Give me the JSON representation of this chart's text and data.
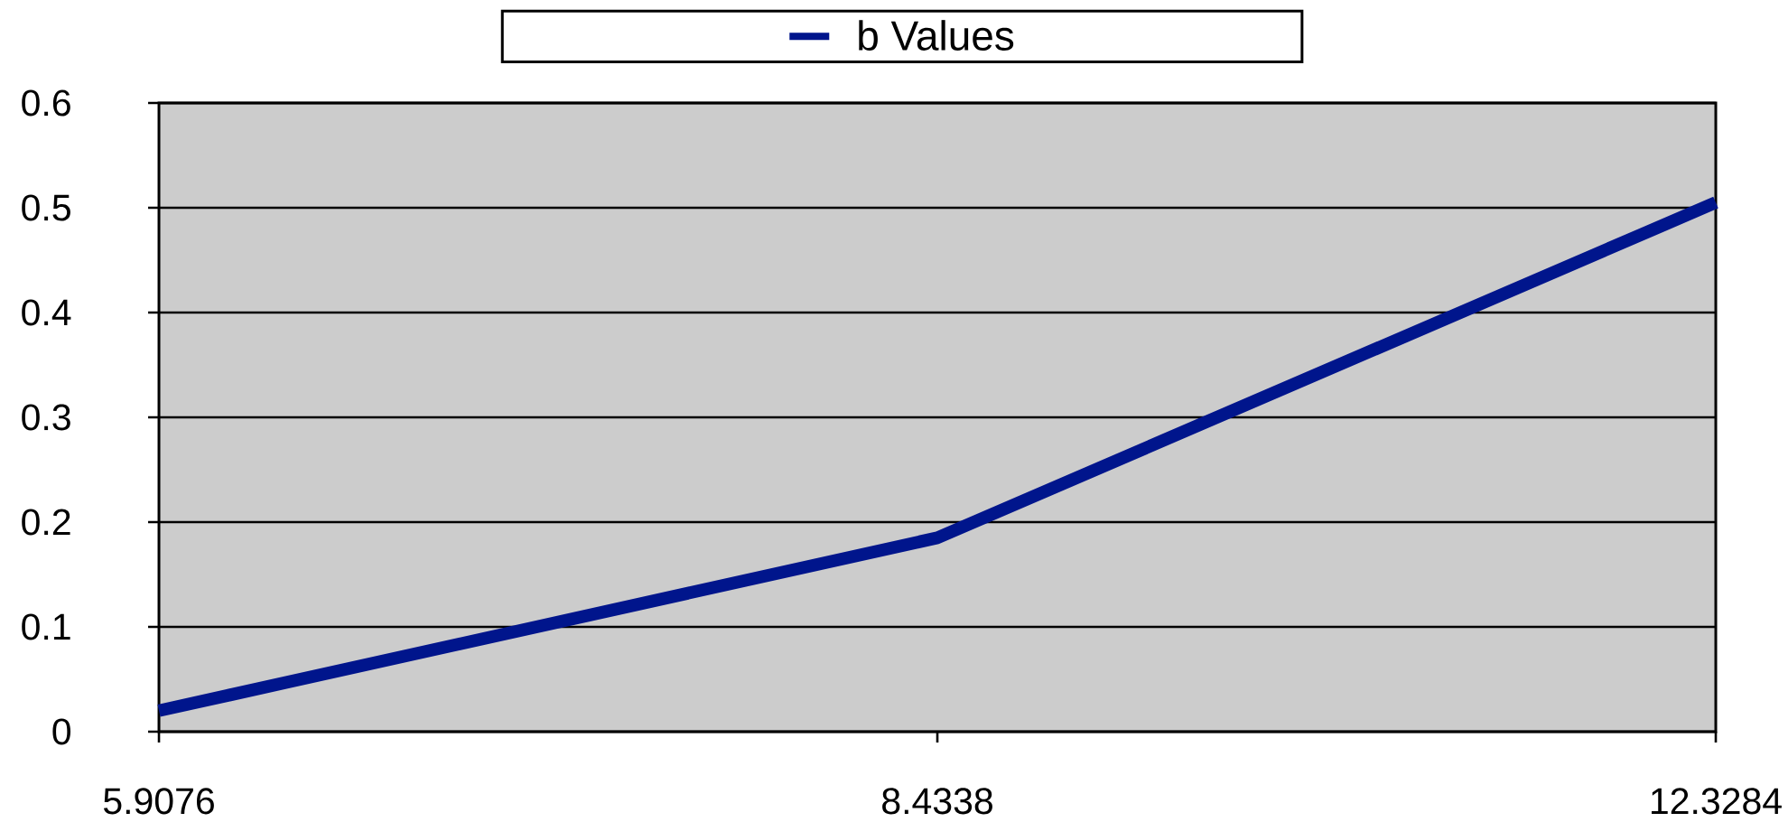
{
  "chart_data": {
    "type": "line",
    "categories": [
      "5.9076",
      "8.4338",
      "12.3284"
    ],
    "series": [
      {
        "name": "b Values",
        "color": "#00158c",
        "values": [
          0.02,
          0.185,
          0.505
        ]
      }
    ],
    "ylim": [
      0,
      0.6
    ],
    "yticks": [
      0,
      0.1,
      0.2,
      0.3,
      0.4,
      0.5,
      0.6
    ],
    "grid": "y",
    "legend": "top",
    "marker": "none",
    "line_style": "solid"
  }
}
